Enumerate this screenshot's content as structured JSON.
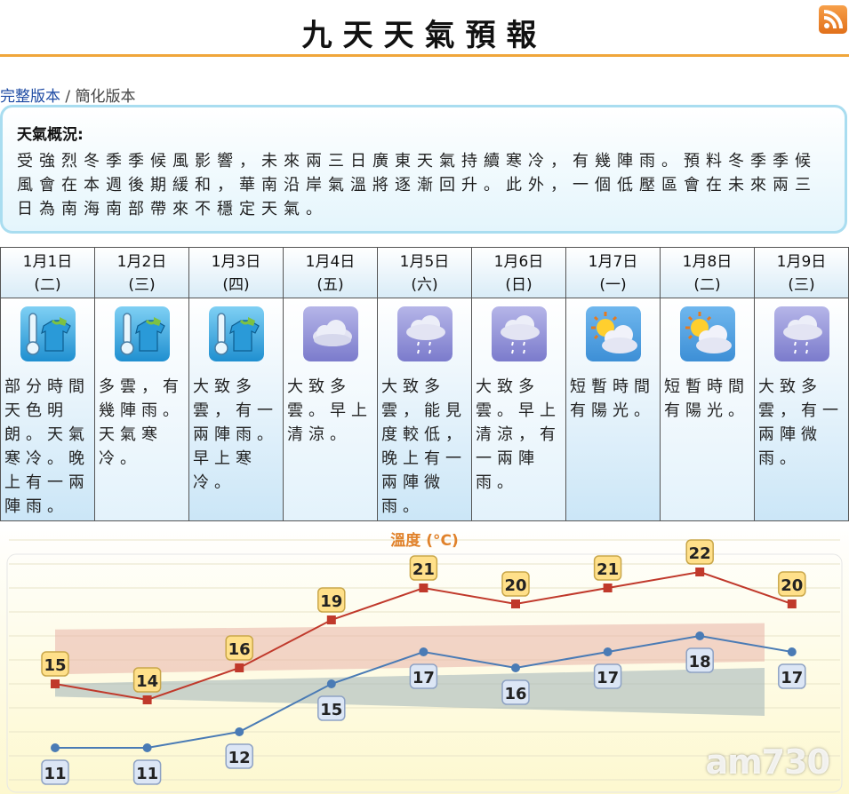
{
  "page": {
    "title": "九天天氣預報",
    "versions": {
      "full": "完整版本",
      "separator": "/",
      "simple": "簡化版本"
    }
  },
  "overview": {
    "heading": "天氣概況:",
    "text": "受強烈冬季季候風影響，未來兩三日廣東天氣持續寒冷，有幾陣雨。預料冬季季候風會在本週後期緩和，華南沿岸氣溫將逐漸回升。此外，一個低壓區會在未來兩三日為南海南部帶來不穩定天氣。"
  },
  "days": [
    {
      "date": "1月1日",
      "weekday": "(二)",
      "icon": "cold-icon",
      "desc": "部分時間天色明朗。天氣寒冷。晚上有一兩陣雨。"
    },
    {
      "date": "1月2日",
      "weekday": "(三)",
      "icon": "cold-icon",
      "desc": "多雲，有幾陣雨。天氣寒冷。"
    },
    {
      "date": "1月3日",
      "weekday": "(四)",
      "icon": "cold-icon",
      "desc": "大致多雲，有一兩陣雨。早上寒冷。"
    },
    {
      "date": "1月4日",
      "weekday": "(五)",
      "icon": "cloudy-icon",
      "desc": "大致多雲。早上清涼。"
    },
    {
      "date": "1月5日",
      "weekday": "(六)",
      "icon": "rain-icon",
      "desc": "大致多雲，能見度較低，晚上有一兩陣微雨。"
    },
    {
      "date": "1月6日",
      "weekday": "(日)",
      "icon": "rain-icon",
      "desc": "大致多雲。早上清涼，有一兩陣雨。"
    },
    {
      "date": "1月7日",
      "weekday": "(一)",
      "icon": "sunny-periods-icon",
      "desc": "短暫時間有陽光。"
    },
    {
      "date": "1月8日",
      "weekday": "(二)",
      "icon": "sunny-periods-icon",
      "desc": "短暫時間有陽光。"
    },
    {
      "date": "1月9日",
      "weekday": "(三)",
      "icon": "rain-icon",
      "desc": "大致多雲，有一兩陣微雨。"
    }
  ],
  "chart_data": {
    "type": "line",
    "title": "溫度 (°C)",
    "categories": [
      "1月1日",
      "1月2日",
      "1月3日",
      "1月4日",
      "1月5日",
      "1月6日",
      "1月7日",
      "1月8日",
      "1月9日"
    ],
    "series": [
      {
        "values": [
          15,
          14,
          16,
          19,
          21,
          20,
          21,
          22,
          20
        ],
        "color": "#c0392b"
      },
      {
        "values": [
          11,
          11,
          12,
          15,
          17,
          16,
          17,
          18,
          17
        ],
        "color": "#4a7bb5"
      }
    ],
    "ylim": [
      9,
      24
    ],
    "grid": true
  },
  "watermark": "am730",
  "colors": {
    "accent": "#f0a63a",
    "link": "#1d4aa3",
    "max_line": "#c0392b",
    "min_line": "#4a7bb5",
    "max_label_bg": "#ffe08a",
    "min_label_bg": "#dce6f5",
    "chart_title": "#e0822b"
  }
}
